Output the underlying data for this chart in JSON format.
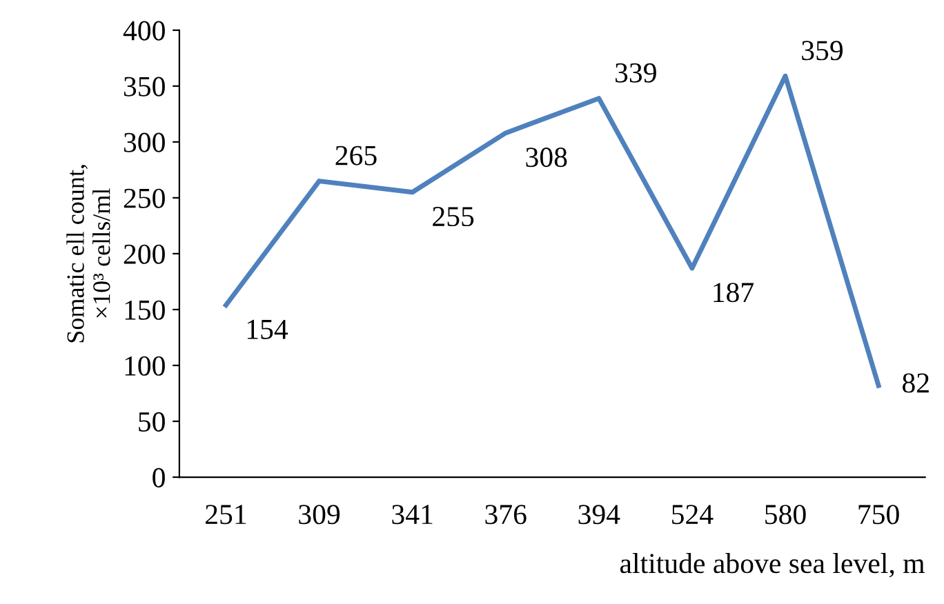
{
  "chart_data": {
    "type": "line",
    "xlabel": "altitude above sea level, m",
    "ylabel": "Somatic ell count,\n×10³ cells/ml",
    "categories": [
      "251",
      "309",
      "341",
      "376",
      "394",
      "524",
      "580",
      "750"
    ],
    "series": [
      {
        "color": "#4f81bd",
        "values": [
          154,
          265,
          255,
          308,
          339,
          187,
          359,
          82
        ]
      }
    ],
    "ylim": [
      0,
      400
    ],
    "yticks": [
      0,
      50,
      100,
      150,
      200,
      250,
      300,
      350,
      400
    ],
    "data_labels": true,
    "grid": false,
    "legend": false,
    "marker": "none",
    "line_style": "solid"
  }
}
